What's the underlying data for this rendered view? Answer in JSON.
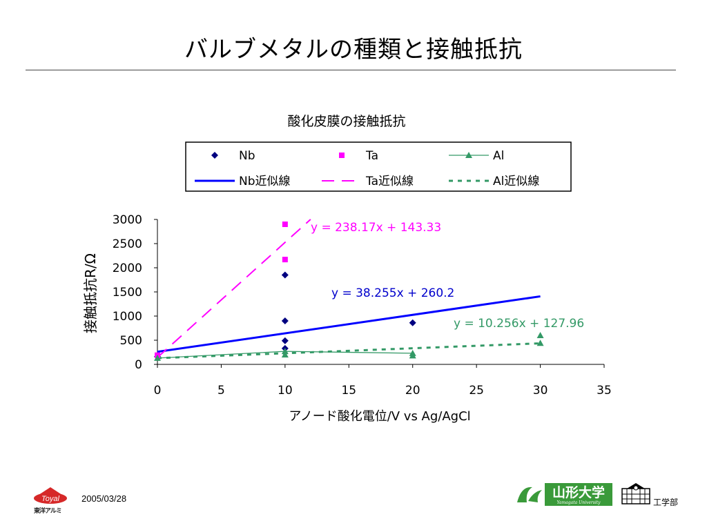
{
  "slide": {
    "title": "バルブメタルの種類と接触抵抗",
    "date": "2005/03/28",
    "logo_left_text": "Toyal",
    "logo_left_caption": "東洋アルミ",
    "logo_right_text": "山形大学",
    "logo_right_subtext": "Yamagata University",
    "faculty": "工学部"
  },
  "colors": {
    "nb": "#000080",
    "ta": "#FF00FF",
    "al": "#339966",
    "nb_fit": "#0000FF",
    "logo_red": "#D62828",
    "logo_green": "#3A9A3A"
  },
  "chart_data": {
    "type": "scatter",
    "title": "酸化皮膜の接触抵抗",
    "xlabel": "アノード酸化電位/V vs Ag/AgCl",
    "ylabel": "接触抵抗R/Ω",
    "xlim": [
      0,
      35
    ],
    "ylim": [
      0,
      3000
    ],
    "xticks": [
      0,
      5,
      10,
      15,
      20,
      25,
      30,
      35
    ],
    "yticks": [
      0,
      500,
      1000,
      1500,
      2000,
      2500,
      3000
    ],
    "legend_position": "top-center",
    "series": [
      {
        "name": "Nb",
        "marker": "diamond",
        "line": false,
        "points": [
          [
            0,
            160
          ],
          [
            10,
            1850
          ],
          [
            10,
            900
          ],
          [
            10,
            490
          ],
          [
            10,
            330
          ],
          [
            20,
            860
          ]
        ]
      },
      {
        "name": "Ta",
        "marker": "square",
        "line": false,
        "points": [
          [
            0,
            190
          ],
          [
            10,
            2900
          ],
          [
            10,
            2170
          ]
        ]
      },
      {
        "name": "Al",
        "marker": "triangle",
        "line": true,
        "points": [
          [
            0,
            130
          ],
          [
            10,
            270
          ],
          [
            20,
            230
          ]
        ]
      },
      {
        "name": "Al",
        "marker": "triangle",
        "line": false,
        "points": [
          [
            10,
            200
          ],
          [
            20,
            180
          ],
          [
            30,
            600
          ],
          [
            30,
            440
          ]
        ]
      }
    ],
    "trendlines": [
      {
        "name": "Nb近似線",
        "slope": 38.255,
        "intercept": 260.2,
        "xrange": [
          0,
          30
        ],
        "style": "solid",
        "equation": "y = 38.255x + 260.2"
      },
      {
        "name": "Ta近似線",
        "slope": 238.17,
        "intercept": 143.33,
        "xrange": [
          0,
          12
        ],
        "style": "dashed",
        "equation": "y = 238.17x + 143.33"
      },
      {
        "name": "Al近似線",
        "slope": 10.256,
        "intercept": 127.96,
        "xrange": [
          0,
          30
        ],
        "style": "dotted",
        "equation": "y = 10.256x + 127.96"
      }
    ],
    "legend": [
      "Nb",
      "Ta",
      "Al",
      "Nb近似線",
      "Ta近似線",
      "Al近似線"
    ]
  }
}
